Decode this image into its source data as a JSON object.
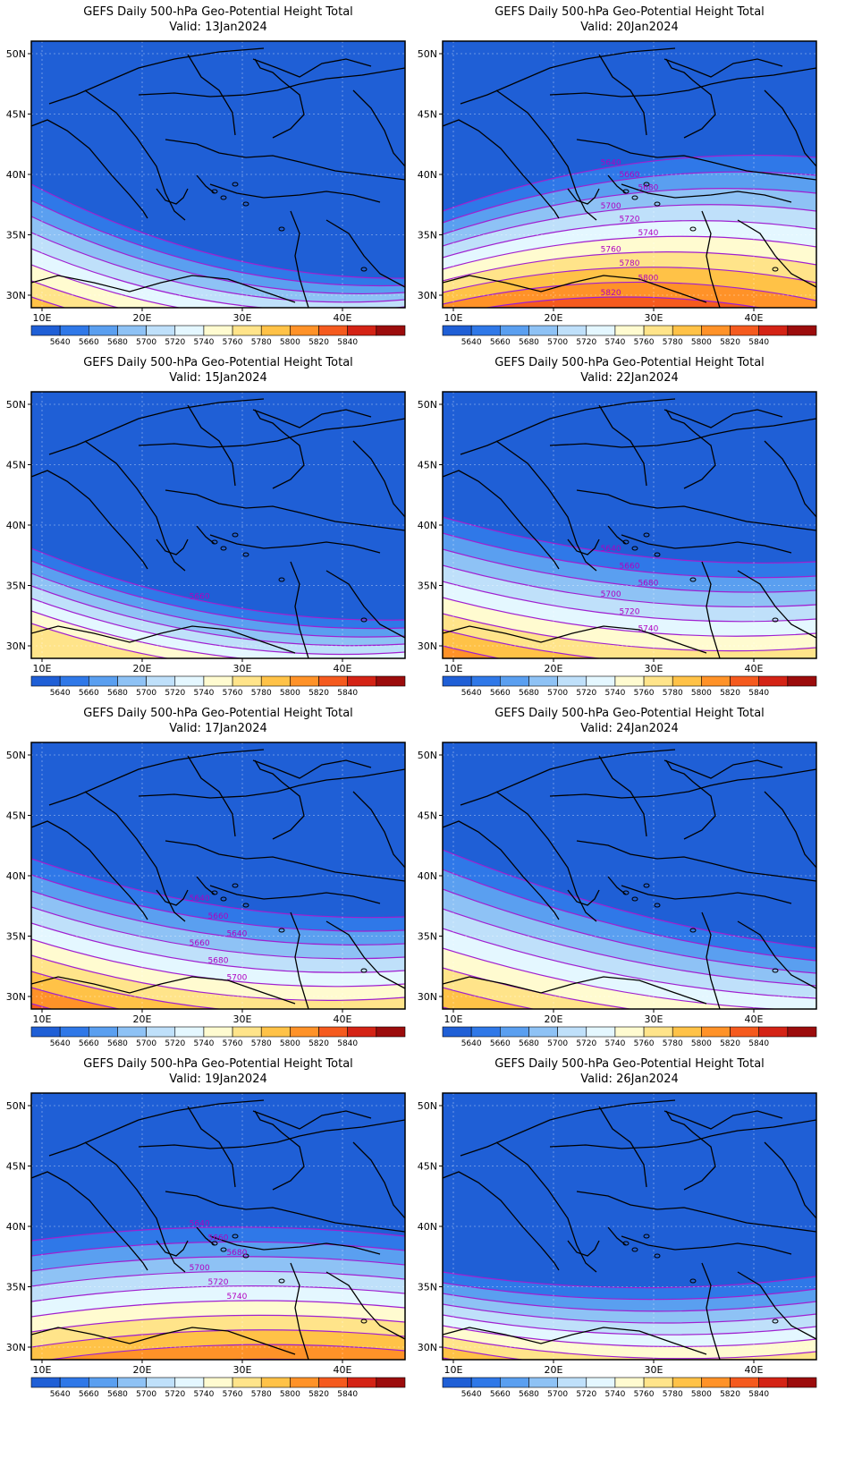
{
  "colorbar": {
    "colors": [
      "#1f5fd6",
      "#2f78e8",
      "#5a9ff0",
      "#8ec2f5",
      "#bfe0fa",
      "#e4f7ff",
      "#fffbd0",
      "#ffe48a",
      "#ffc247",
      "#ff9228",
      "#f55a1e",
      "#d42315",
      "#9c0c0c"
    ],
    "labels": [
      "5640",
      "5660",
      "5680",
      "5700",
      "5720",
      "5740",
      "5760",
      "5780",
      "5800",
      "5820",
      "5840"
    ]
  },
  "contour_color": "#a020d0",
  "panels": [
    {
      "title": "GEFS Daily 500-hPa Geo-Potential Height Total",
      "valid": "Valid: 13Jan2024",
      "lat_ticks": [
        "30N",
        "35N",
        "40N",
        "45N",
        "50N"
      ],
      "lon_ticks": [
        "10E",
        "20E",
        "30E",
        "40E"
      ],
      "contour_labels": []
    },
    {
      "title": "GEFS Daily 500-hPa Geo-Potential Height Total",
      "valid": "Valid: 20Jan2024",
      "lat_ticks": [
        "30N",
        "35N",
        "40N",
        "45N",
        "50N"
      ],
      "lon_ticks": [
        "10E",
        "20E",
        "30E",
        "40E"
      ],
      "contour_labels": [
        "5640",
        "5660",
        "5680",
        "5700",
        "5720",
        "5740",
        "5760",
        "5780",
        "5800",
        "5820"
      ]
    },
    {
      "title": "GEFS Daily 500-hPa Geo-Potential Height Total",
      "valid": "Valid: 15Jan2024",
      "lat_ticks": [
        "30N",
        "35N",
        "40N",
        "45N",
        "50N"
      ],
      "lon_ticks": [
        "10E",
        "20E",
        "30E",
        "40E"
      ],
      "contour_labels": [
        "5660"
      ]
    },
    {
      "title": "GEFS Daily 500-hPa Geo-Potential Height Total",
      "valid": "Valid: 22Jan2024",
      "lat_ticks": [
        "30N",
        "35N",
        "40N",
        "45N",
        "50N"
      ],
      "lon_ticks": [
        "10E",
        "20E",
        "30E",
        "40E"
      ],
      "contour_labels": [
        "5640",
        "5660",
        "5680",
        "5700",
        "5720",
        "5740"
      ]
    },
    {
      "title": "GEFS Daily 500-hPa Geo-Potential Height Total",
      "valid": "Valid: 17Jan2024",
      "lat_ticks": [
        "30N",
        "35N",
        "40N",
        "45N",
        "50N"
      ],
      "lon_ticks": [
        "10E",
        "20E",
        "30E",
        "40E"
      ],
      "contour_labels": [
        "5640",
        "5660",
        "5640",
        "5660",
        "5680",
        "5700"
      ]
    },
    {
      "title": "GEFS Daily 500-hPa Geo-Potential Height Total",
      "valid": "Valid: 24Jan2024",
      "lat_ticks": [
        "30N",
        "35N",
        "40N",
        "45N",
        "50N"
      ],
      "lon_ticks": [
        "10E",
        "20E",
        "30E",
        "40E"
      ],
      "contour_labels": []
    },
    {
      "title": "GEFS Daily 500-hPa Geo-Potential Height Total",
      "valid": "Valid: 19Jan2024",
      "lat_ticks": [
        "30N",
        "35N",
        "40N",
        "45N",
        "50N"
      ],
      "lon_ticks": [
        "10E",
        "20E",
        "30E",
        "40E"
      ],
      "contour_labels": [
        "5640",
        "5660",
        "5680",
        "5700",
        "5720",
        "5740"
      ]
    },
    {
      "title": "GEFS Daily 500-hPa Geo-Potential Height Total",
      "valid": "Valid: 26Jan2024",
      "lat_ticks": [
        "30N",
        "35N",
        "40N",
        "45N",
        "50N"
      ],
      "lon_ticks": [
        "10E",
        "20E",
        "30E",
        "40E"
      ],
      "contour_labels": []
    }
  ]
}
